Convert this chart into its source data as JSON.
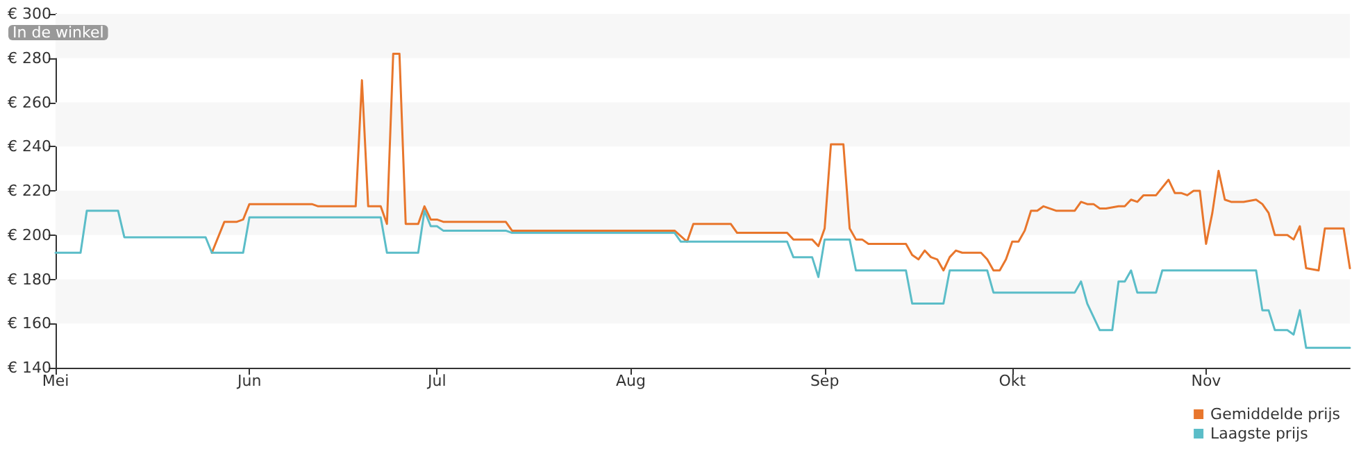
{
  "chart_data": {
    "type": "line",
    "annotations": [
      "In de winkel"
    ],
    "xlim": [
      "--05-01",
      "--11-24"
    ],
    "xticks": [
      {
        "value": "--05-01",
        "label": "Mei"
      },
      {
        "value": "--06-01",
        "label": "Jun"
      },
      {
        "value": "--07-01",
        "label": "Jul"
      },
      {
        "value": "--08-01",
        "label": "Aug"
      },
      {
        "value": "--09-01",
        "label": "Sep"
      },
      {
        "value": "--10-01",
        "label": "Okt"
      },
      {
        "value": "--11-01",
        "label": "Nov"
      }
    ],
    "ylim": [
      140,
      300
    ],
    "yticks": [
      {
        "value": 140,
        "label": "€ 140"
      },
      {
        "value": 160,
        "label": "€ 160"
      },
      {
        "value": 180,
        "label": "€ 180"
      },
      {
        "value": 200,
        "label": "€ 200"
      },
      {
        "value": 220,
        "label": "€ 220"
      },
      {
        "value": 240,
        "label": "€ 240"
      },
      {
        "value": 260,
        "label": "€ 260"
      },
      {
        "value": 280,
        "label": "€ 280"
      },
      {
        "value": 300,
        "label": "€ 300"
      }
    ],
    "bands": [
      {
        "axis": "y",
        "from": 160,
        "to": 180,
        "color": "#f7f7f7"
      },
      {
        "axis": "y",
        "from": 200,
        "to": 220,
        "color": "#f7f7f7"
      },
      {
        "axis": "y",
        "from": 240,
        "to": 260,
        "color": "#f7f7f7"
      },
      {
        "axis": "y",
        "from": 280,
        "to": 300,
        "color": "#f7f7f7"
      }
    ],
    "legend": "bottom right",
    "marker": "none",
    "line_style": "solid",
    "series": [
      {
        "name": "Gemiddelde prijs",
        "color": "#e8762c",
        "x": [
          "--05-26",
          "--05-28",
          "--05-30",
          "--05-31",
          "--06-01",
          "--06-11",
          "--06-12",
          "--06-18",
          "--06-19",
          "--06-20",
          "--06-22",
          "--06-23",
          "--06-24",
          "--06-25",
          "--06-26",
          "--06-28",
          "--06-29",
          "--06-30",
          "--07-01",
          "--07-02",
          "--07-12",
          "--07-13",
          "--08-08",
          "--08-10",
          "--08-11",
          "--08-17",
          "--08-18",
          "--08-26",
          "--08-27",
          "--08-30",
          "--08-31",
          "--09-01",
          "--09-02",
          "--09-04",
          "--09-05",
          "--09-06",
          "--09-07",
          "--09-08",
          "--09-14",
          "--09-15",
          "--09-16",
          "--09-17",
          "--09-18",
          "--09-19",
          "--09-20",
          "--09-21",
          "--09-22",
          "--09-23",
          "--09-26",
          "--09-27",
          "--09-28",
          "--09-29",
          "--09-30",
          "--10-01",
          "--10-02",
          "--10-03",
          "--10-04",
          "--10-05",
          "--10-06",
          "--10-08",
          "--10-11",
          "--10-12",
          "--10-13",
          "--10-14",
          "--10-15",
          "--10-16",
          "--10-18",
          "--10-19",
          "--10-20",
          "--10-21",
          "--10-22",
          "--10-24",
          "--10-26",
          "--10-27",
          "--10-28",
          "--10-29",
          "--10-30",
          "--10-31",
          "--11-01",
          "--11-02",
          "--11-03",
          "--11-04",
          "--11-05",
          "--11-07",
          "--11-09",
          "--11-10",
          "--11-11",
          "--11-12",
          "--11-14",
          "--11-15",
          "--11-16",
          "--11-17",
          "--11-19",
          "--11-20",
          "--11-23",
          "--11-24"
        ],
        "values": [
          192,
          206,
          206,
          207,
          214,
          214,
          213,
          213,
          270,
          213,
          213,
          205,
          282,
          282,
          205,
          205,
          213,
          207,
          207,
          206,
          206,
          202,
          202,
          197,
          205,
          205,
          201,
          201,
          198,
          198,
          195,
          203,
          241,
          241,
          203,
          198,
          198,
          196,
          196,
          191,
          189,
          193,
          190,
          189,
          184,
          190,
          193,
          192,
          192,
          189,
          184,
          184,
          189,
          197,
          197,
          202,
          211,
          211,
          213,
          211,
          211,
          215,
          214,
          214,
          212,
          212,
          213,
          213,
          216,
          215,
          218,
          218,
          225,
          219,
          219,
          218,
          220,
          220,
          196,
          210,
          229,
          216,
          215,
          215,
          216,
          214,
          210,
          200,
          200,
          198,
          204,
          185,
          184,
          203,
          203,
          185
        ]
      },
      {
        "name": "Laagste prijs",
        "color": "#5bbdc8",
        "x": [
          "--05-01",
          "--05-05",
          "--05-06",
          "--05-11",
          "--05-12",
          "--05-25",
          "--05-26",
          "--05-31",
          "--06-01",
          "--06-22",
          "--06-23",
          "--06-28",
          "--06-29",
          "--06-30",
          "--07-01",
          "--07-02",
          "--07-12",
          "--07-13",
          "--08-08",
          "--08-09",
          "--08-26",
          "--08-27",
          "--08-30",
          "--08-31",
          "--09-01",
          "--09-05",
          "--09-06",
          "--09-14",
          "--09-15",
          "--09-20",
          "--09-21",
          "--09-27",
          "--09-28",
          "--10-11",
          "--10-12",
          "--10-13",
          "--10-15",
          "--10-17",
          "--10-18",
          "--10-19",
          "--10-20",
          "--10-21",
          "--10-24",
          "--10-25",
          "--11-09",
          "--11-10",
          "--11-11",
          "--11-12",
          "--11-14",
          "--11-15",
          "--11-16",
          "--11-17",
          "--11-24"
        ],
        "values": [
          192,
          192,
          211,
          211,
          199,
          199,
          192,
          192,
          208,
          208,
          192,
          192,
          211,
          204,
          204,
          202,
          202,
          201,
          201,
          197,
          197,
          190,
          190,
          181,
          198,
          198,
          184,
          184,
          169,
          169,
          184,
          184,
          174,
          174,
          179,
          169,
          157,
          157,
          179,
          179,
          184,
          174,
          174,
          184,
          184,
          166,
          166,
          157,
          157,
          155,
          166,
          149,
          149
        ]
      }
    ]
  }
}
